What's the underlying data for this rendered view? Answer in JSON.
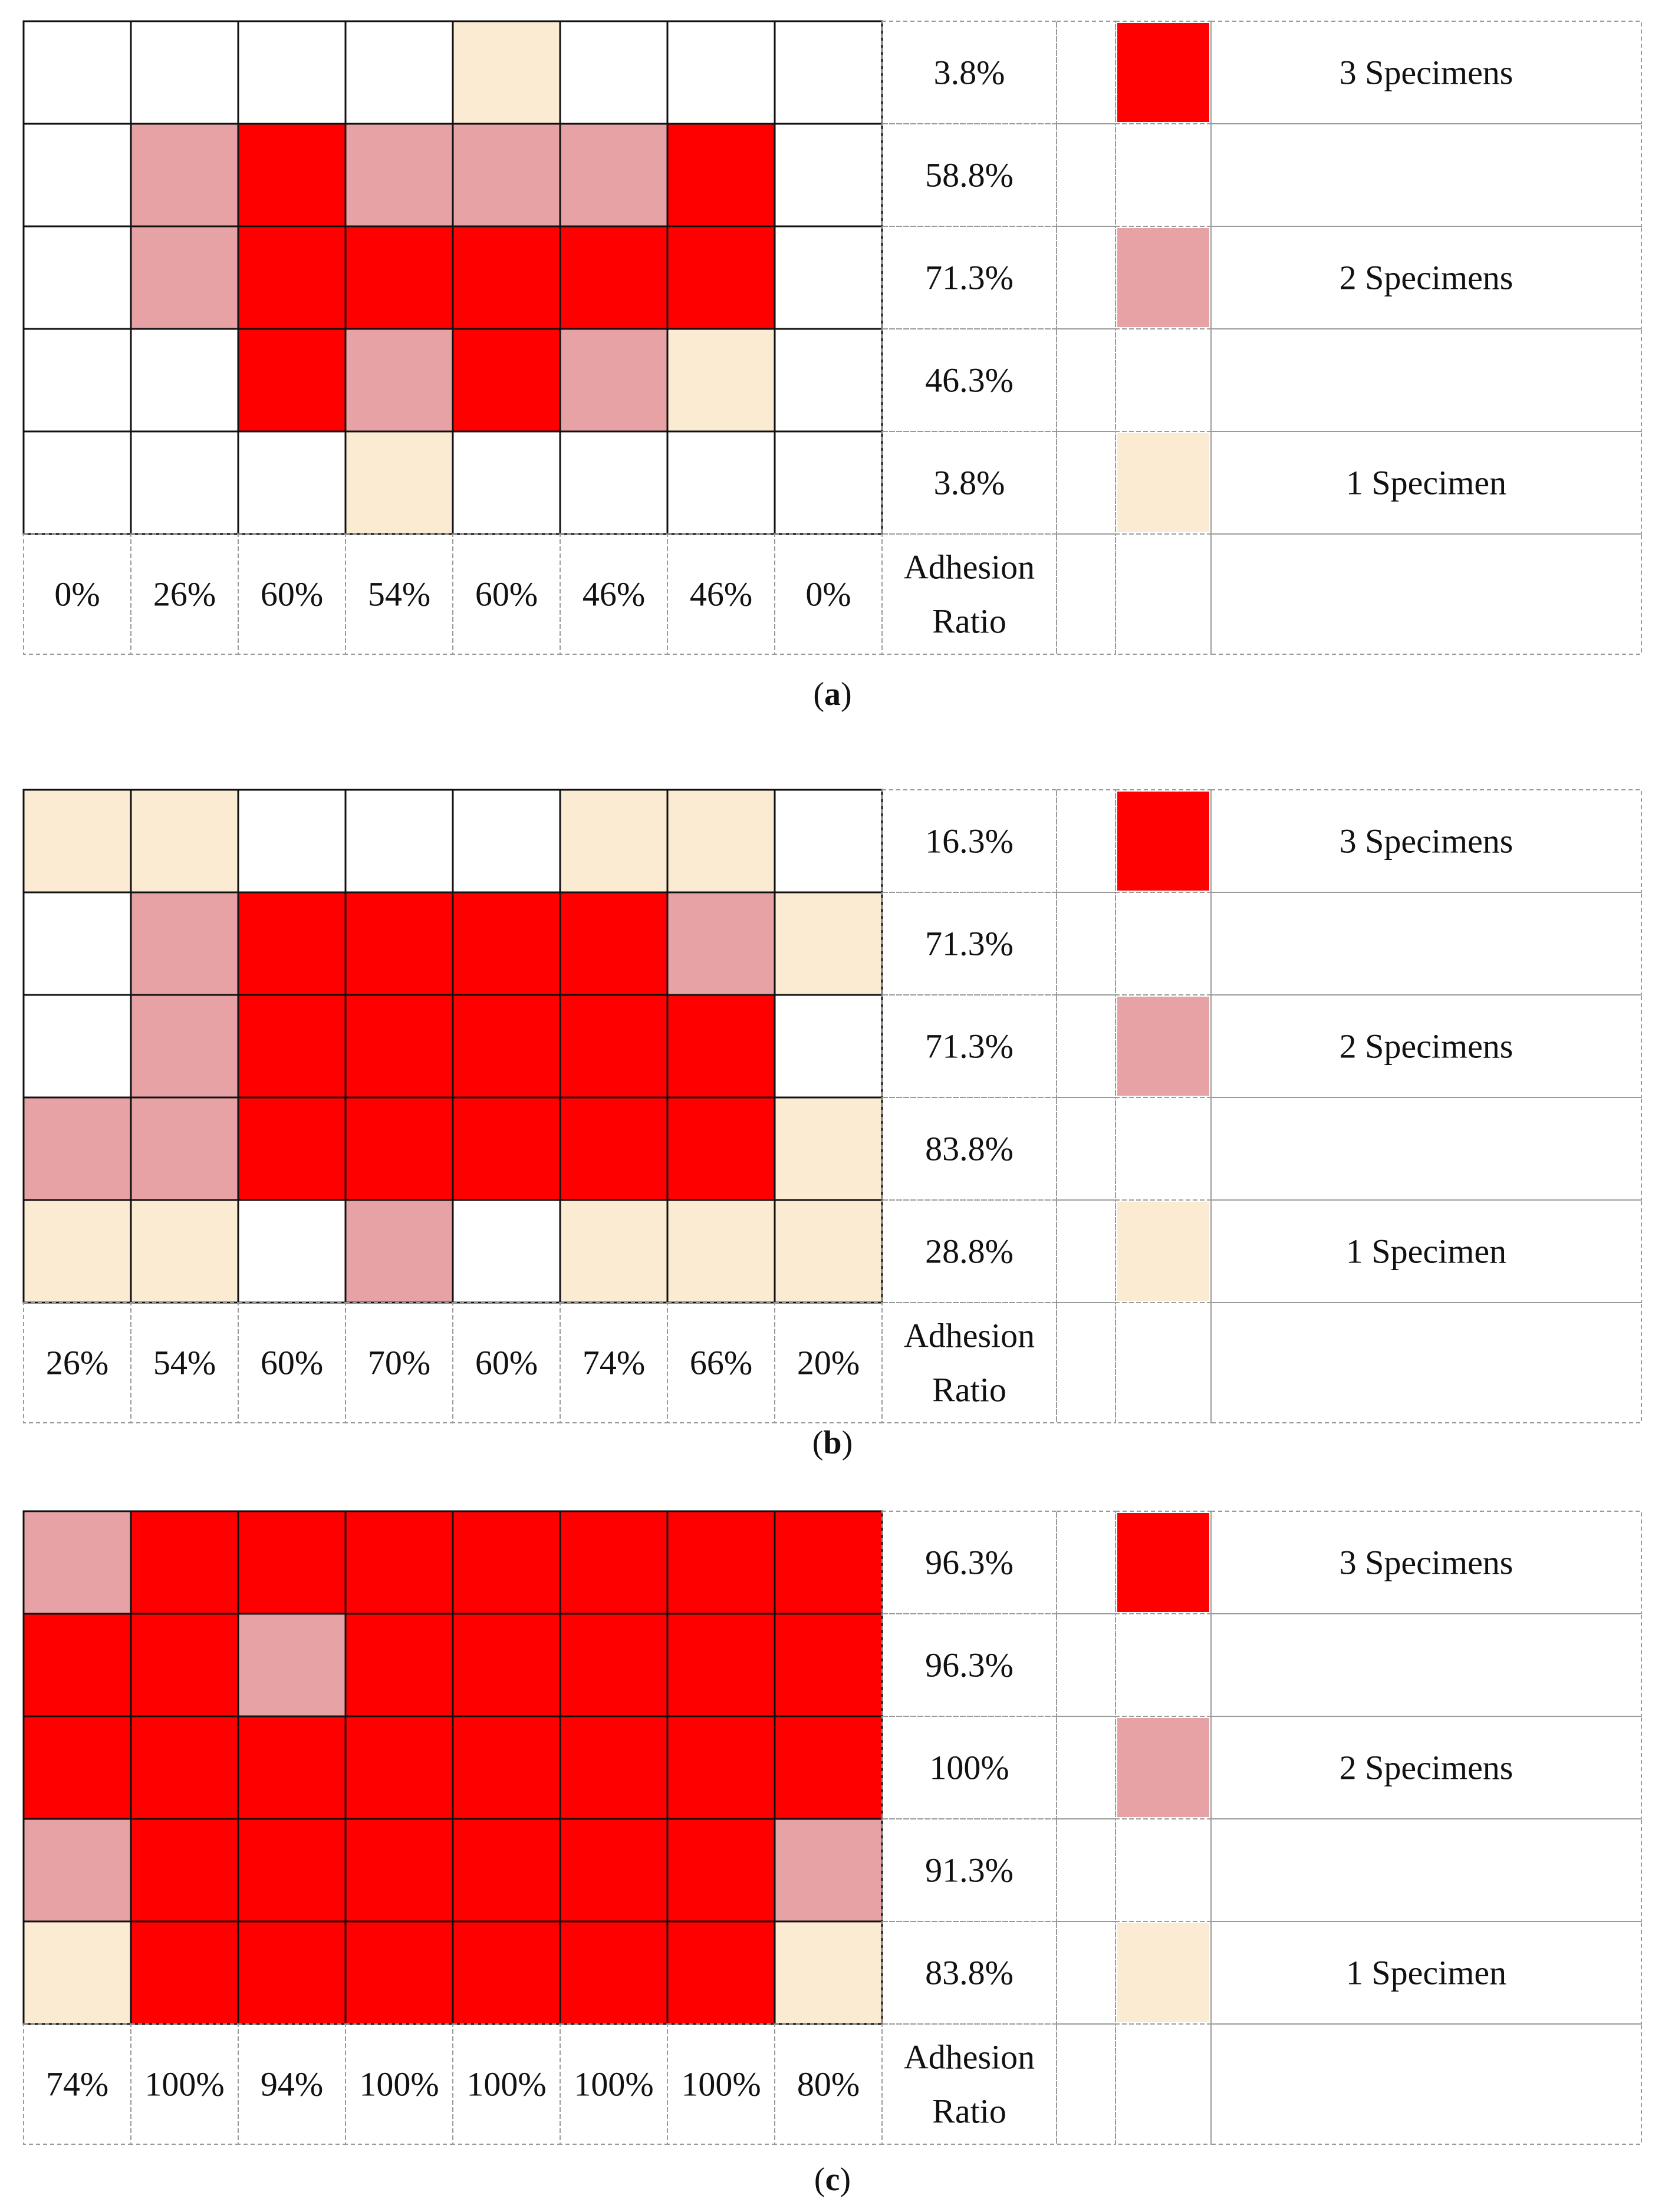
{
  "colors": {
    "three_specimens": "#ff0000",
    "two_specimens": "#e6a2a4",
    "one_specimen": "#fbebd2",
    "none": "#ffffff"
  },
  "chart_data": [
    {
      "type": "heatmap",
      "panel_label": "a",
      "level_codes": {
        "3": "3 Specimens",
        "2": "2 Specimens",
        "1": "1 Specimen",
        "0": "none"
      },
      "grid": [
        [
          0,
          0,
          0,
          0,
          1,
          0,
          0,
          0
        ],
        [
          0,
          2,
          3,
          2,
          2,
          2,
          3,
          0
        ],
        [
          0,
          2,
          3,
          3,
          3,
          3,
          3,
          0
        ],
        [
          0,
          0,
          3,
          2,
          3,
          2,
          1,
          0
        ],
        [
          0,
          0,
          0,
          1,
          0,
          0,
          0,
          0
        ]
      ],
      "row_ratios": [
        "3.8%",
        "58.8%",
        "71.3%",
        "46.3%",
        "3.8%"
      ],
      "column_ratios": [
        "0%",
        "26%",
        "60%",
        "54%",
        "60%",
        "46%",
        "46%",
        "0%"
      ],
      "ratio_label_line1": "Adhesion",
      "ratio_label_line2": "Ratio",
      "legend": [
        {
          "level": 3,
          "label": "3 Specimens",
          "row": 0
        },
        {
          "level": 2,
          "label": "2 Specimens",
          "row": 2
        },
        {
          "level": 1,
          "label": "1 Specimen",
          "row": 4
        }
      ]
    },
    {
      "type": "heatmap",
      "panel_label": "b",
      "level_codes": {
        "3": "3 Specimens",
        "2": "2 Specimens",
        "1": "1 Specimen",
        "0": "none"
      },
      "grid": [
        [
          1,
          1,
          0,
          0,
          0,
          1,
          1,
          0
        ],
        [
          0,
          2,
          3,
          3,
          3,
          3,
          2,
          1
        ],
        [
          0,
          2,
          3,
          3,
          3,
          3,
          3,
          0
        ],
        [
          2,
          2,
          3,
          3,
          3,
          3,
          3,
          1
        ],
        [
          1,
          1,
          0,
          2,
          0,
          1,
          1,
          1
        ]
      ],
      "row_ratios": [
        "16.3%",
        "71.3%",
        "71.3%",
        "83.8%",
        "28.8%"
      ],
      "column_ratios": [
        "26%",
        "54%",
        "60%",
        "70%",
        "60%",
        "74%",
        "66%",
        "20%"
      ],
      "ratio_label_line1": "Adhesion",
      "ratio_label_line2": "Ratio",
      "legend": [
        {
          "level": 3,
          "label": "3 Specimens",
          "row": 0
        },
        {
          "level": 2,
          "label": "2 Specimens",
          "row": 2
        },
        {
          "level": 1,
          "label": "1 Specimen",
          "row": 4
        }
      ]
    },
    {
      "type": "heatmap",
      "panel_label": "c",
      "level_codes": {
        "3": "3 Specimens",
        "2": "2 Specimens",
        "1": "1 Specimen",
        "0": "none"
      },
      "grid": [
        [
          2,
          3,
          3,
          3,
          3,
          3,
          3,
          3
        ],
        [
          3,
          3,
          2,
          3,
          3,
          3,
          3,
          3
        ],
        [
          3,
          3,
          3,
          3,
          3,
          3,
          3,
          3
        ],
        [
          2,
          3,
          3,
          3,
          3,
          3,
          3,
          2
        ],
        [
          1,
          3,
          3,
          3,
          3,
          3,
          3,
          1
        ]
      ],
      "row_ratios": [
        "96.3%",
        "96.3%",
        "100%",
        "91.3%",
        "83.8%"
      ],
      "column_ratios": [
        "74%",
        "100%",
        "94%",
        "100%",
        "100%",
        "100%",
        "100%",
        "80%"
      ],
      "ratio_label_line1": "Adhesion",
      "ratio_label_line2": "Ratio",
      "legend": [
        {
          "level": 3,
          "label": "3 Specimens",
          "row": 0
        },
        {
          "level": 2,
          "label": "2 Specimens",
          "row": 2
        },
        {
          "level": 1,
          "label": "1 Specimen",
          "row": 4
        }
      ]
    }
  ]
}
